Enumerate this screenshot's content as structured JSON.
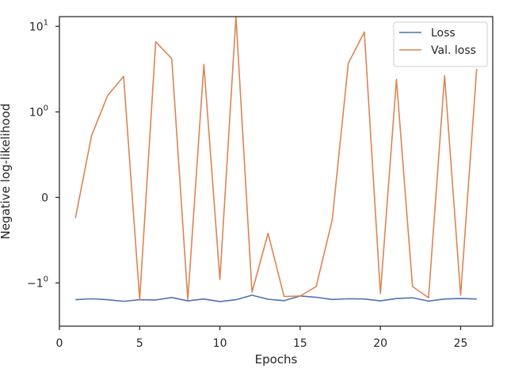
{
  "chart_data": {
    "type": "line",
    "xlabel": "Epochs",
    "ylabel": "Negative log-likelihood",
    "yscale": "symlog",
    "xlim": [
      0,
      27
    ],
    "ylim": [
      -3.2,
      13
    ],
    "grid": false,
    "legend_position": "top-right",
    "x_ticks": [
      {
        "value": 0,
        "label": "0"
      },
      {
        "value": 5,
        "label": "5"
      },
      {
        "value": 10,
        "label": "10"
      },
      {
        "value": 15,
        "label": "15"
      },
      {
        "value": 20,
        "label": "20"
      },
      {
        "value": 25,
        "label": "25"
      }
    ],
    "y_ticks": [
      {
        "value": -1,
        "base": "−1",
        "exp": "0"
      },
      {
        "value": 0,
        "base": "0",
        "exp": ""
      },
      {
        "value": 1,
        "base": "10",
        "exp": "0"
      },
      {
        "value": 10,
        "base": "10",
        "exp": "1"
      }
    ],
    "x": [
      1,
      2,
      3,
      4,
      5,
      6,
      7,
      8,
      9,
      10,
      11,
      12,
      13,
      14,
      15,
      16,
      17,
      18,
      19,
      20,
      21,
      22,
      23,
      24,
      25,
      26
    ],
    "series": [
      {
        "name": "Loss",
        "color": "#4c72b0",
        "values": [
          -1.57,
          -1.53,
          -1.57,
          -1.64,
          -1.57,
          -1.58,
          -1.48,
          -1.62,
          -1.54,
          -1.65,
          -1.57,
          -1.39,
          -1.55,
          -1.61,
          -1.42,
          -1.47,
          -1.56,
          -1.53,
          -1.54,
          -1.62,
          -1.52,
          -1.49,
          -1.63,
          -1.54,
          -1.52,
          -1.54
        ]
      },
      {
        "name": "Val. loss",
        "color": "#dd8452",
        "values": [
          -0.24,
          0.72,
          1.55,
          2.6,
          -1.57,
          6.6,
          4.2,
          -1.57,
          3.6,
          -0.96,
          13.0,
          -1.28,
          -0.42,
          -1.44,
          -1.42,
          -1.1,
          -0.26,
          3.7,
          8.6,
          -1.33,
          2.4,
          -1.1,
          -1.49,
          2.65,
          -1.39,
          3.2
        ]
      }
    ]
  }
}
